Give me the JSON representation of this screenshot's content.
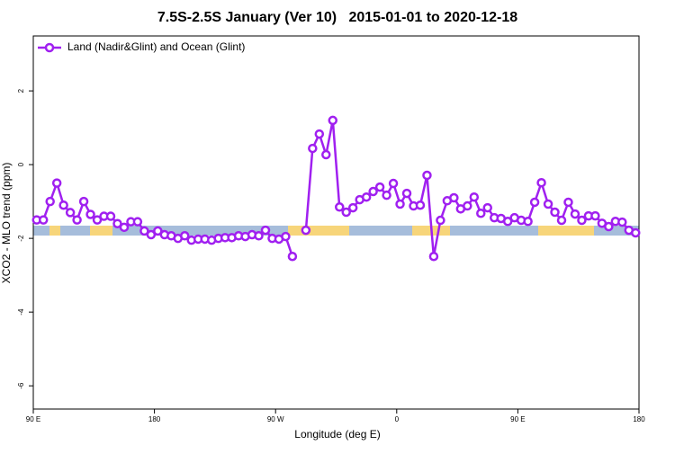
{
  "chart_data": {
    "type": "line",
    "title": "7.5S-2.5S January (Ver 10)   2015-01-01 to 2020-12-18",
    "x_label": "Longitude (deg E)",
    "y_label": "XCO2 - MLO trend (ppm)",
    "x": [
      92.5,
      97.5,
      102.5,
      107.5,
      112.5,
      117.5,
      122.5,
      127.5,
      132.5,
      137.5,
      142.5,
      147.5,
      152.5,
      157.5,
      162.5,
      167.5,
      172.5,
      177.5,
      182.5,
      187.5,
      192.5,
      197.5,
      202.5,
      207.5,
      212.5,
      217.5,
      222.5,
      227.5,
      232.5,
      237.5,
      242.5,
      247.5,
      252.5,
      257.5,
      262.5,
      267.5,
      272.5,
      277.5,
      282.5,
      287.5,
      292.5,
      297.5,
      302.5,
      307.5,
      312.5,
      317.5,
      322.5,
      327.5,
      332.5,
      337.5,
      342.5,
      347.5,
      352.5,
      357.5,
      362.5,
      367.5,
      372.5,
      377.5,
      382.5,
      387.5,
      392.5,
      397.5,
      402.5,
      407.5,
      412.5,
      417.5,
      422.5,
      427.5,
      432.5,
      437.5,
      442.5,
      447.5,
      452.5,
      457.5,
      462.5,
      467.5,
      472.5,
      477.5,
      482.5,
      487.5,
      492.5,
      497.5,
      502.5,
      507.5,
      512.5,
      517.5,
      522.5,
      527.5,
      532.5,
      537.5
    ],
    "series": [
      {
        "name": "Land (Nadir&Glint) and Ocean (Glint)",
        "color": "#a020f0",
        "values": [
          -1.5,
          -1.5,
          -1.0,
          -0.5,
          -1.1,
          -1.3,
          -1.5,
          -1.0,
          -1.35,
          -1.5,
          -1.4,
          -1.4,
          -1.6,
          -1.7,
          -1.55,
          -1.55,
          -1.8,
          -1.9,
          -1.8,
          -1.9,
          -1.93,
          -2.0,
          -1.93,
          -2.05,
          -2.02,
          -2.02,
          -2.05,
          -2.0,
          -1.98,
          -1.98,
          -1.93,
          -1.95,
          -1.9,
          -1.93,
          -1.78,
          -2.0,
          -2.02,
          -1.95,
          -2.49,
          null,
          -1.78,
          0.44,
          0.83,
          0.27,
          1.2,
          -1.15,
          -1.29,
          -1.17,
          -0.95,
          -0.88,
          -0.73,
          -0.61,
          -0.83,
          -0.51,
          -1.07,
          -0.78,
          -1.12,
          -1.1,
          -0.29,
          -2.49,
          -1.51,
          -0.98,
          -0.9,
          -1.2,
          -1.12,
          -0.88,
          -1.32,
          -1.17,
          -1.44,
          -1.46,
          -1.54,
          -1.44,
          -1.51,
          -1.54,
          -1.02,
          -0.49,
          -1.07,
          -1.29,
          -1.51,
          -1.02,
          -1.34,
          -1.51,
          -1.39,
          -1.39,
          -1.59,
          -1.68,
          -1.54,
          -1.56,
          -1.78,
          -1.85
        ]
      }
    ],
    "xlim": [
      90,
      540
    ],
    "xticks": [
      {
        "value": 90,
        "label": "90 E"
      },
      180,
      {
        "value": 270,
        "label": "90 W"
      },
      {
        "value": 360,
        "label": "0"
      },
      {
        "value": 450,
        "label": "90 E"
      },
      {
        "value": 540,
        "label": "180"
      }
    ],
    "ylim": [
      -6.63,
      3.49
    ],
    "yticks": [
      -6,
      -4,
      -2,
      0,
      2
    ],
    "legend": "top-left",
    "grid": false
  }
}
